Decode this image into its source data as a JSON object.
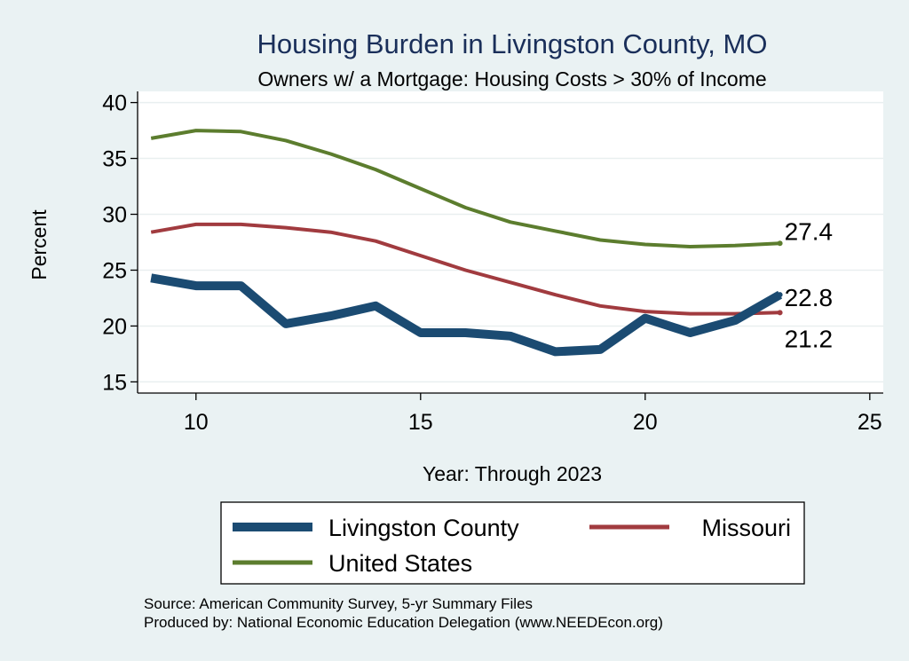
{
  "chart_data": {
    "type": "line",
    "title": "Housing Burden in Livingston County, MO",
    "subtitle": "Owners w/ a Mortgage: Housing Costs > 30% of Income",
    "xlabel": "Year: Through 2023",
    "ylabel": "Percent",
    "xlim": [
      8.7,
      25.3
    ],
    "ylim": [
      14,
      41
    ],
    "xticks": [
      10,
      15,
      20,
      25
    ],
    "yticks": [
      15,
      20,
      25,
      30,
      35,
      40
    ],
    "grid": true,
    "legend_position": "bottom",
    "x": [
      9,
      10,
      11,
      12,
      13,
      14,
      15,
      16,
      17,
      18,
      19,
      20,
      21,
      22,
      23
    ],
    "series": [
      {
        "name": "Livingston County",
        "color": "#1b4b72",
        "values": [
          24.3,
          23.6,
          23.6,
          20.2,
          20.9,
          21.8,
          19.4,
          19.4,
          19.1,
          17.7,
          17.9,
          20.7,
          19.4,
          20.5,
          22.8
        ],
        "end_label": "22.8"
      },
      {
        "name": "Missouri",
        "color": "#a13b3f",
        "values": [
          28.4,
          29.1,
          29.1,
          28.8,
          28.4,
          27.6,
          26.3,
          25.0,
          23.9,
          22.8,
          21.8,
          21.3,
          21.1,
          21.1,
          21.2
        ],
        "end_label": "21.2"
      },
      {
        "name": "United States",
        "color": "#5c7d2e",
        "values": [
          36.8,
          37.5,
          37.4,
          36.6,
          35.4,
          34.0,
          32.3,
          30.6,
          29.3,
          28.5,
          27.7,
          27.3,
          27.1,
          27.2,
          27.4
        ],
        "end_label": "27.4"
      }
    ],
    "source": [
      "Source: American Community Survey, 5-yr Summary Files",
      "Produced by: National Economic Education Delegation (www.NEEDEcon.org)"
    ]
  }
}
